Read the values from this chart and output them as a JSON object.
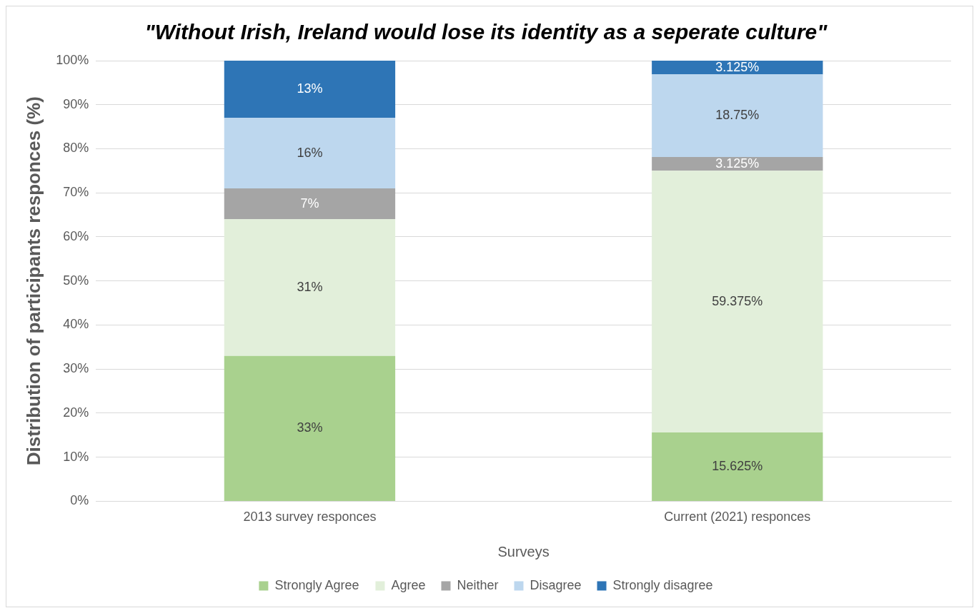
{
  "chart_data": {
    "type": "bar",
    "title": "\"Without Irish, Ireland would lose its identity as a seperate culture\"",
    "xlabel": "Surveys",
    "ylabel": "Distribution of participants responces (%)",
    "categories": [
      "2013 survey responces",
      "Current (2021) responces"
    ],
    "stacked": true,
    "series": [
      {
        "name": "Strongly Agree",
        "color": "#a9d18e",
        "values": [
          33,
          15.625
        ],
        "value_labels": [
          "33%",
          "15.625%"
        ]
      },
      {
        "name": "Agree",
        "color": "#e2efda",
        "values": [
          31,
          59.375
        ],
        "value_labels": [
          "31%",
          "59.375%"
        ]
      },
      {
        "name": "Neither",
        "color": "#a5a5a5",
        "values": [
          7,
          3.125
        ],
        "value_labels": [
          "7%",
          "3.125%"
        ]
      },
      {
        "name": "Disagree",
        "color": "#bdd7ee",
        "values": [
          16,
          18.75
        ],
        "value_labels": [
          "16%",
          "18.75%"
        ]
      },
      {
        "name": "Strongly disagree",
        "color": "#2e75b6",
        "values": [
          13,
          3.125
        ],
        "value_labels": [
          "13%",
          "3.125%"
        ]
      }
    ],
    "ylim": [
      0,
      100
    ],
    "yticks": [
      {
        "value": 0,
        "label": "0%"
      },
      {
        "value": 10,
        "label": "10%"
      },
      {
        "value": 20,
        "label": "20%"
      },
      {
        "value": 30,
        "label": "30%"
      },
      {
        "value": 40,
        "label": "40%"
      },
      {
        "value": 50,
        "label": "50%"
      },
      {
        "value": 60,
        "label": "60%"
      },
      {
        "value": 70,
        "label": "70%"
      },
      {
        "value": 80,
        "label": "80%"
      },
      {
        "value": 90,
        "label": "90%"
      },
      {
        "value": 100,
        "label": "100%"
      }
    ],
    "grid": "y",
    "legend": "bottom"
  }
}
